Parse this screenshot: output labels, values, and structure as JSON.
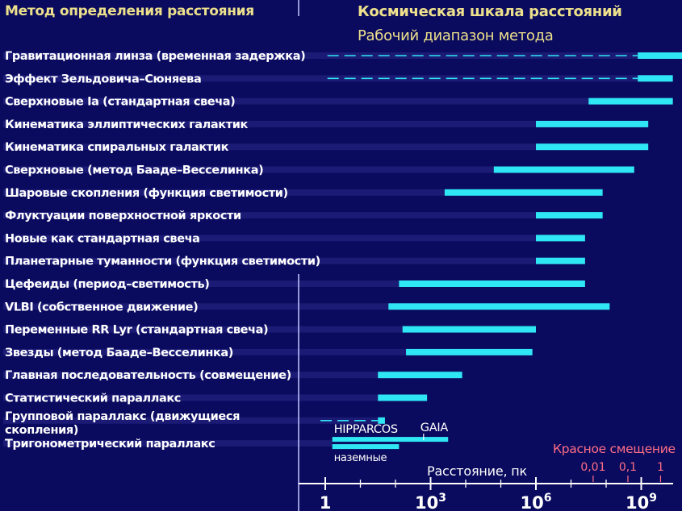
{
  "headers": {
    "left": "Метод определения расстояния",
    "right": "Космическая шкала расстояний",
    "subtitle": "Рабочий диапазон метода"
  },
  "chart_data": {
    "type": "bar",
    "orientation": "horizontal-range",
    "x_scale": "log",
    "xlabel": "Расстояние, пк",
    "xlim_log10": [
      -1,
      10.5
    ],
    "x_ticks": [
      {
        "log10": 0,
        "base": "1",
        "exp": ""
      },
      {
        "log10": 3,
        "base": "10",
        "exp": "3"
      },
      {
        "log10": 6,
        "base": "10",
        "exp": "6"
      },
      {
        "log10": 9,
        "base": "10",
        "exp": "9"
      }
    ],
    "redshift_axis": {
      "label": "Красное смещение",
      "ticks": [
        {
          "label": "0,01",
          "log10_pc": 7.63
        },
        {
          "label": "0,1",
          "log10_pc": 8.62
        },
        {
          "label": "1",
          "log10_pc": 9.55
        }
      ]
    },
    "methods": [
      {
        "label": "Гравитационная линза (временная задержка)",
        "min_log10": 8.9,
        "max_log10": 10.2,
        "dashed_from_log10": 0.2
      },
      {
        "label": "Эффект Зельдовича–Сюняева",
        "min_log10": 8.9,
        "max_log10": 9.9,
        "dashed_from_log10": 0.2
      },
      {
        "label": "Сверхновые Ia (стандартная свеча)",
        "min_log10": 7.5,
        "max_log10": 9.9
      },
      {
        "label": "Кинематика эллиптических галактик",
        "min_log10": 6.0,
        "max_log10": 9.2
      },
      {
        "label": "Кинематика спиральных галактик",
        "min_log10": 6.0,
        "max_log10": 9.2
      },
      {
        "label": "Сверхновые (метод Бааде–Весселинка)",
        "min_log10": 4.8,
        "max_log10": 8.8
      },
      {
        "label": "Шаровые скопления (функция светимости)",
        "min_log10": 3.4,
        "max_log10": 7.9
      },
      {
        "label": "Флуктуации поверхностной яркости",
        "min_log10": 6.0,
        "max_log10": 7.9
      },
      {
        "label": "Новые как стандартная свеча",
        "min_log10": 6.0,
        "max_log10": 7.4
      },
      {
        "label": "Планетарные туманности (функция светимости)",
        "min_log10": 6.0,
        "max_log10": 7.4
      },
      {
        "label": "Цефеиды (период–светимость)",
        "min_log10": 2.1,
        "max_log10": 7.4
      },
      {
        "label": "VLBI (собственное движение)",
        "min_log10": 1.8,
        "max_log10": 8.1
      },
      {
        "label": "Переменные RR Lyr (стандартная свеча)",
        "min_log10": 2.2,
        "max_log10": 6.0
      },
      {
        "label": "Звезды (метод Бааде–Весселинка)",
        "min_log10": 2.3,
        "max_log10": 5.9
      },
      {
        "label": "Главная последовательность (совмещение)",
        "min_log10": 1.5,
        "max_log10": 3.9
      },
      {
        "label": "Статистический параллакс",
        "min_log10": 1.5,
        "max_log10": 2.9
      },
      {
        "label": "Групповой параллакс (движущиеся скопления)",
        "min_log10": 1.5,
        "max_log10": 1.7,
        "dashed_from_log10": 0.0
      },
      {
        "label": "Тригонометрический параллакс",
        "min_log10": 0.2,
        "max_log10": 3.5,
        "sub_ranges": [
          {
            "label": "HIPPARCOS",
            "min_log10": 0.2,
            "max_log10": 2.8
          },
          {
            "label": "GAIA",
            "min_log10": 2.8,
            "max_log10": 3.5
          },
          {
            "label": "наземные",
            "min_log10": 0.2,
            "max_log10": 2.1
          }
        ]
      }
    ]
  },
  "colors": {
    "background": "#0a0a5e",
    "bar": "#2fe6f4",
    "header": "#ece08c",
    "label": "#ffffff",
    "divider": "#c8c8ff",
    "redshift": "#ff6f86",
    "row_stripe": "#2a2a8a"
  }
}
